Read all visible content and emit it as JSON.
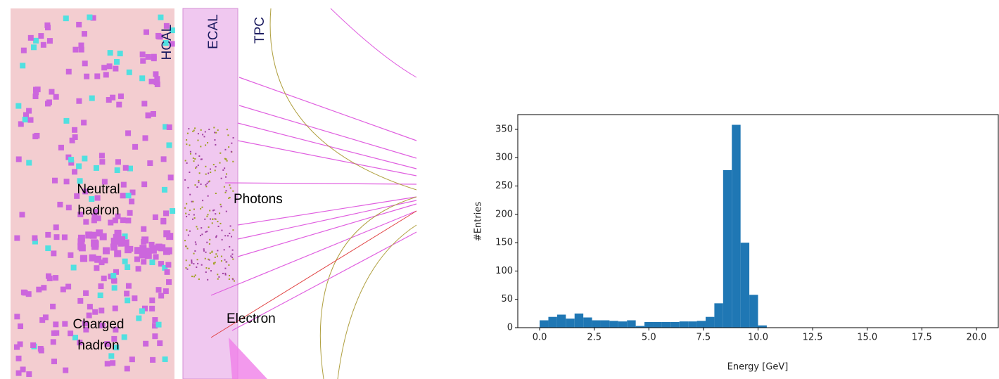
{
  "event_display": {
    "labels": {
      "hcal": "HCAL",
      "ecal": "ECAL",
      "tpc": "TPC",
      "neutral": [
        "Neutral",
        "hadron"
      ],
      "photons": "Photons",
      "electron": "Electron",
      "charged": [
        "Charged",
        "hadron"
      ]
    }
  },
  "chart_data": {
    "type": "histogram",
    "xlabel": "Energy [GeV]",
    "ylabel": "#Entries",
    "color": "#1f77b4",
    "bins": [
      0,
      0.4,
      0.8,
      1.2,
      1.6,
      2,
      2.4,
      2.8,
      3.2,
      3.6,
      4,
      4.4,
      4.8,
      5.2,
      5.6,
      6,
      6.4,
      6.8,
      7.2,
      7.6,
      8,
      8.4,
      8.8,
      9.2,
      9.6,
      10,
      10.4,
      10.8,
      11.2,
      11.6,
      12,
      12.4,
      12.8,
      13.2,
      13.6,
      14,
      14.4,
      14.8,
      15.2,
      15.6,
      16,
      16.4,
      16.8,
      17.2,
      17.6,
      18,
      18.4,
      18.8,
      19.2,
      19.6,
      20
    ],
    "values": [
      13,
      19,
      23,
      16,
      25,
      18,
      13,
      13,
      12,
      11,
      13,
      3,
      10,
      10,
      10,
      10,
      11,
      11,
      12,
      19,
      43,
      278,
      358,
      150,
      58,
      4,
      0,
      0,
      0,
      0,
      0,
      0,
      0,
      0,
      0,
      0,
      0,
      0,
      0,
      0,
      0,
      0,
      0,
      0,
      0,
      0,
      0,
      0,
      0,
      0
    ],
    "xlim": [
      -1,
      21
    ],
    "ylim": [
      0,
      376
    ],
    "xticks": [
      {
        "value": 0,
        "label": "0.0"
      },
      2.5,
      {
        "value": 5,
        "label": "5.0"
      },
      7.5,
      {
        "value": 10,
        "label": "10.0"
      },
      12.5,
      {
        "value": 15,
        "label": "15.0"
      },
      17.5,
      {
        "value": 20,
        "label": "20.0"
      }
    ],
    "yticks": [
      0,
      50,
      100,
      150,
      200,
      250,
      300,
      350
    ]
  }
}
